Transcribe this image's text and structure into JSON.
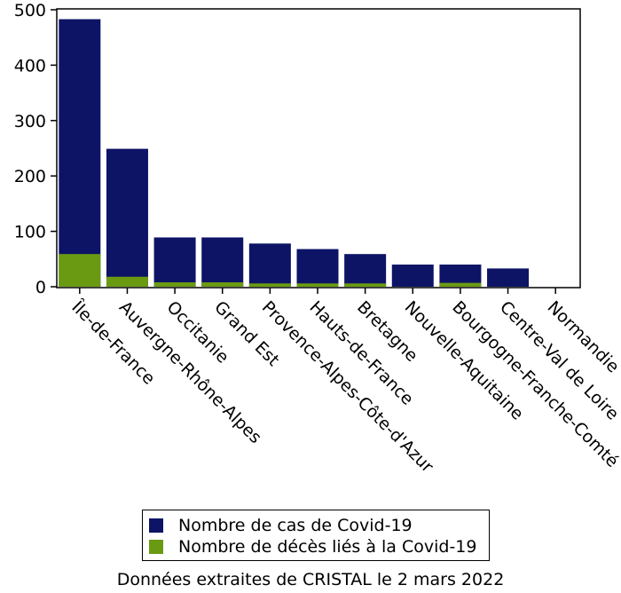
{
  "chart_data": {
    "type": "bar",
    "stacked": false,
    "overlapping": true,
    "categories": [
      "Île-de-France",
      "Auvergne-Rhône-Alpes",
      "Occitanie",
      "Grand Est",
      "Provence-Alpes-Côte-d'Azur",
      "Hauts-de-France",
      "Bretagne",
      "Nouvelle-Aquitaine",
      "Bourgogne-Franche-Comté",
      "Centre-Val de Loire",
      "Normandie"
    ],
    "series": [
      {
        "name": "Nombre de cas de Covid-19",
        "color": "#0d1466",
        "values": [
          483,
          249,
          89,
          89,
          78,
          68,
          59,
          40,
          40,
          33,
          0
        ]
      },
      {
        "name": "Nombre de décès liés à la Covid-19",
        "color": "#6a9a12",
        "values": [
          59,
          18,
          8,
          8,
          6,
          6,
          6,
          0,
          7,
          0,
          0
        ]
      }
    ],
    "yticks": [
      0,
      100,
      200,
      300,
      400,
      500
    ],
    "ylim": [
      0,
      500
    ],
    "grid": false,
    "legend": "bottom"
  },
  "caption": "Données extraites de CRISTAL le 2 mars 2022"
}
